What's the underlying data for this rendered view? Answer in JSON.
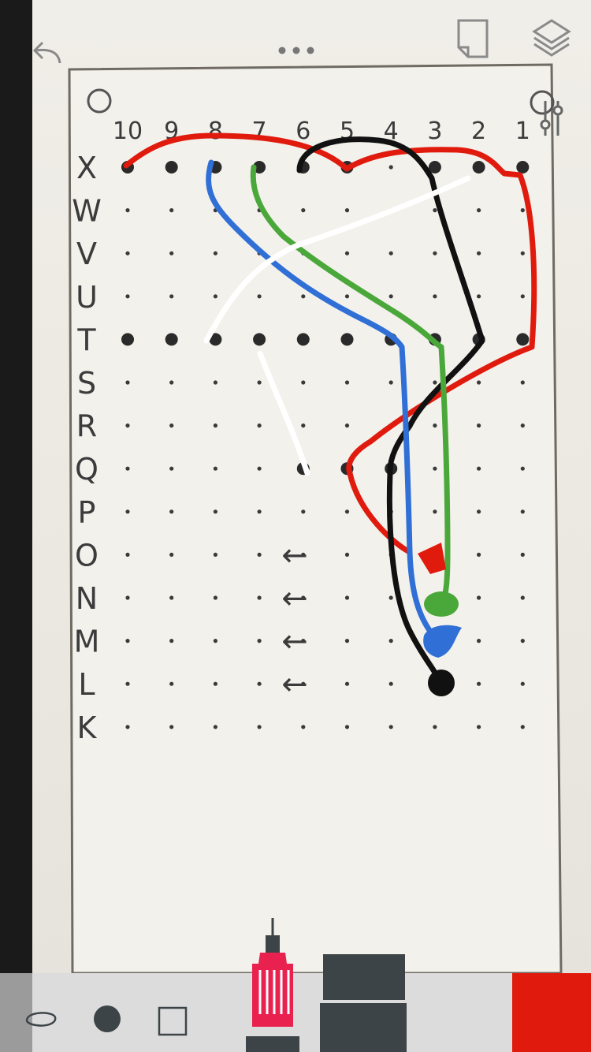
{
  "toolbar": {
    "icons": [
      "undo-icon",
      "more-icon",
      "page-icon",
      "layers-icon",
      "settings-sliders-icon"
    ],
    "tools": [
      "lasso-tool",
      "dot-brush-tool",
      "shape-tool",
      "technical-pen-tool",
      "marker-tool",
      "color-swatch"
    ],
    "active_color": "#e01b0e"
  },
  "sketch": {
    "column_labels": [
      "10",
      "9",
      "8",
      "7",
      "6",
      "5",
      "4",
      "3",
      "2",
      "1"
    ],
    "row_labels": [
      "X",
      "W",
      "V",
      "U",
      "T",
      "S",
      "R",
      "Q",
      "P",
      "O",
      "N",
      "M",
      "L",
      "K"
    ],
    "arrows": [
      "←",
      "←",
      "←",
      "←"
    ],
    "stroke_colors": {
      "red": "#e01b0e",
      "black": "#111111",
      "blue": "#2f6fd6",
      "green": "#4aa83a",
      "white": "#ffffff"
    }
  }
}
